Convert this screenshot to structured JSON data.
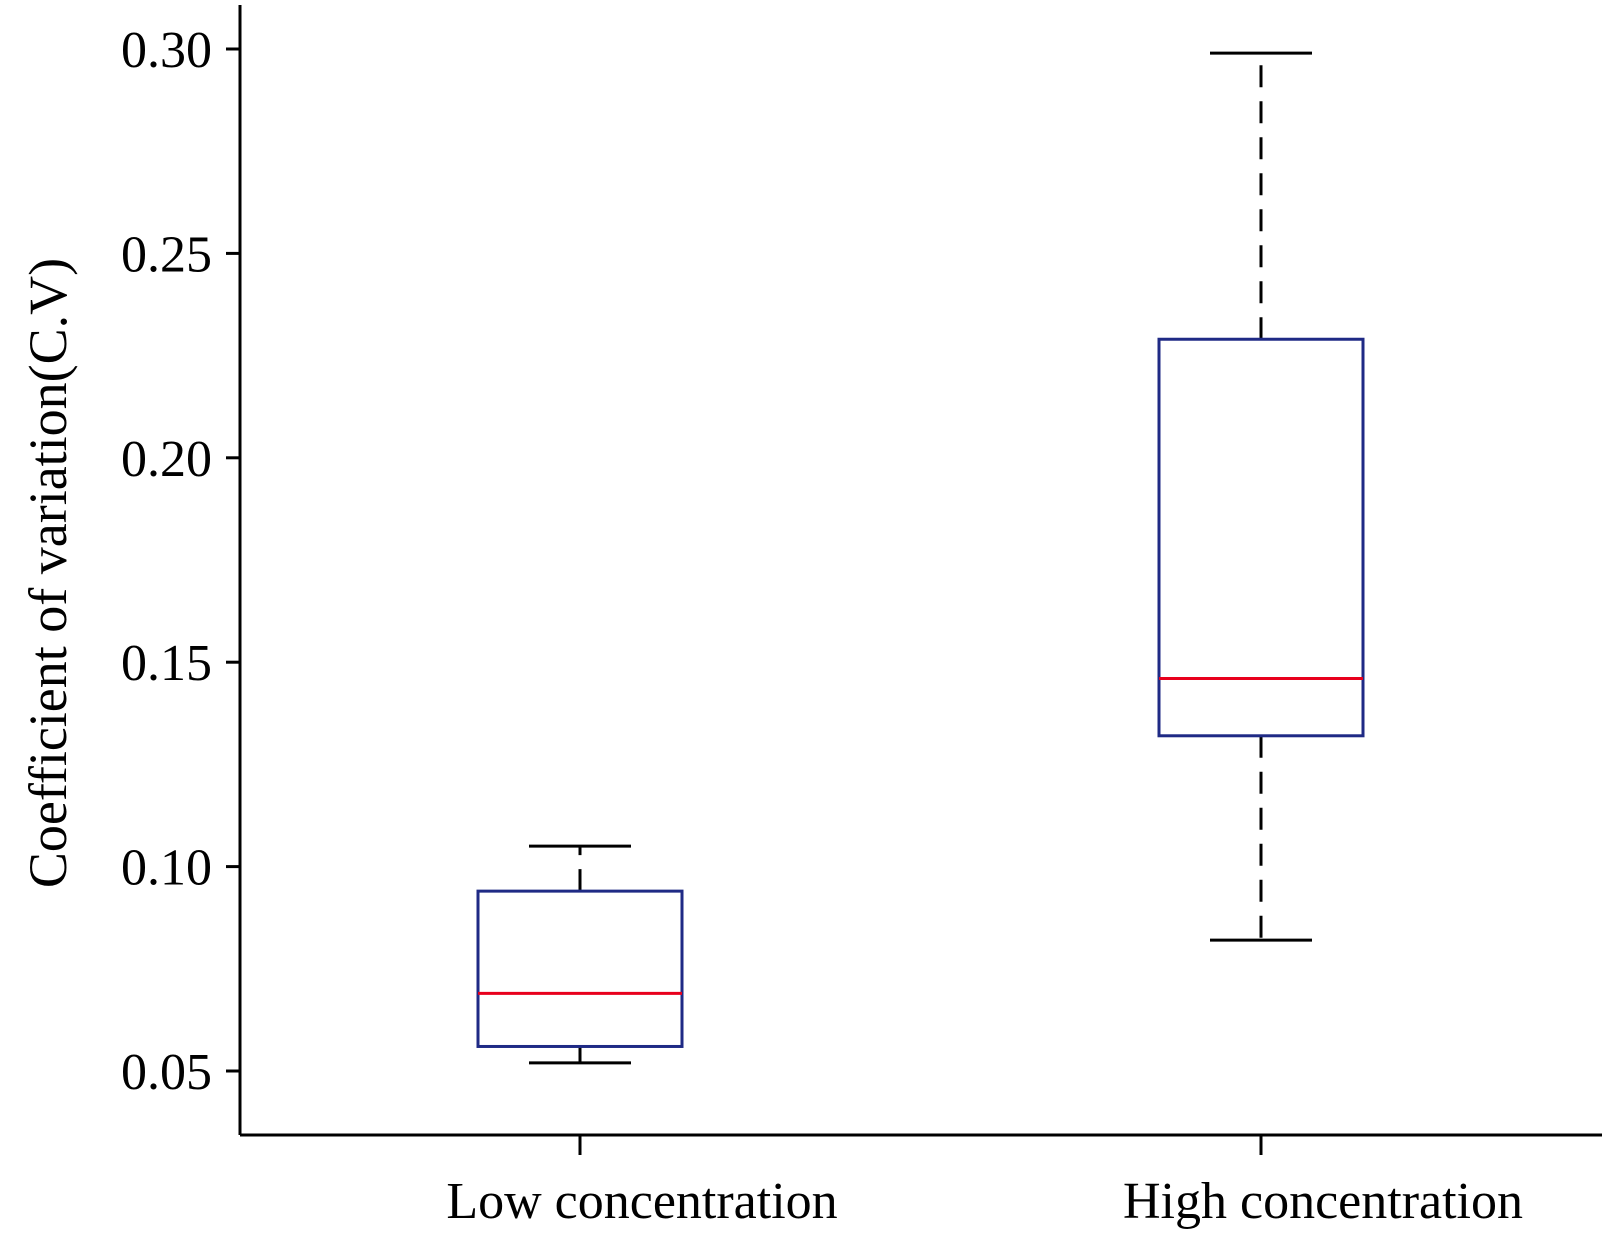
{
  "chart_data": {
    "type": "boxplot",
    "title": "",
    "xlabel": "",
    "ylabel": "Coefficient of variation(C.V)",
    "ylim": [
      0.034,
      0.31
    ],
    "yticks": [
      0.05,
      0.1,
      0.15,
      0.2,
      0.25,
      0.3
    ],
    "ytick_labels": [
      "0.05",
      "0.10",
      "0.15",
      "0.20",
      "0.25",
      "0.30"
    ],
    "grid": false,
    "legend": "none",
    "categories": [
      "Low concentration",
      "High concentration"
    ],
    "boxes": [
      {
        "category": "Low concentration",
        "whisker_low": 0.052,
        "q1": 0.056,
        "median": 0.069,
        "q3": 0.094,
        "whisker_high": 0.105
      },
      {
        "category": "High concentration",
        "whisker_low": 0.082,
        "q1": 0.132,
        "median": 0.146,
        "q3": 0.229,
        "whisker_high": 0.299
      }
    ],
    "colors": {
      "box": "#1f2a85",
      "median": "#e8001c",
      "whisker": "#000000",
      "axis": "#000000"
    }
  }
}
